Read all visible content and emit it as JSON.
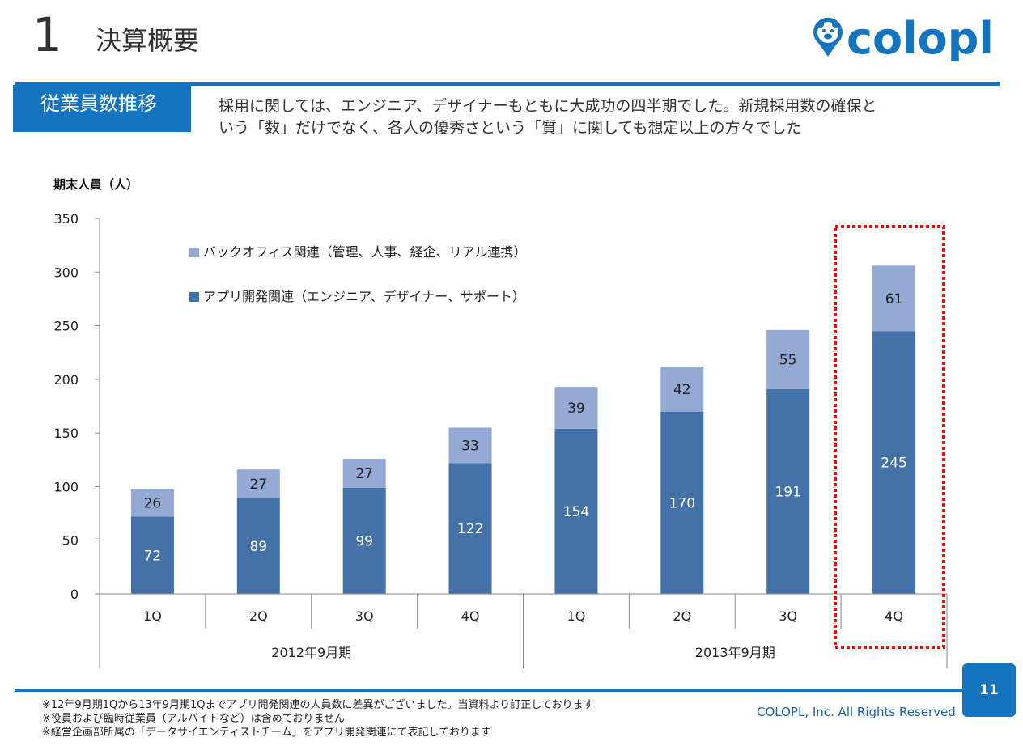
{
  "header": {
    "section_number": "1",
    "title": "決算概要",
    "tab_label": "従業員数推移",
    "description_lines": [
      "採用に関しては、エンジニア、デザイナーもともに大成功の四半期でした。新規採用数の確保と",
      "いう「数」だけでなく、各人の優秀さという「質」に関しても想定以上の方々でした"
    ]
  },
  "logo": {
    "text": "colopl",
    "icon": "bear-pin-icon",
    "color": "#1574bf"
  },
  "colors": {
    "brand": "#1574bf",
    "app": "#4472a8",
    "back_office": "#94a9d3",
    "highlight": "#e01010"
  },
  "chart_data": {
    "type": "bar",
    "stacked": true,
    "ylabel": "期末人員（人）",
    "ylim": [
      0,
      350
    ],
    "yticks": [
      "0",
      "50",
      "100",
      "150",
      "200",
      "250",
      "300",
      "350"
    ],
    "categories": [
      "1Q",
      "2Q",
      "3Q",
      "4Q",
      "1Q",
      "2Q",
      "3Q",
      "4Q"
    ],
    "groups": [
      {
        "label": "2012年9月期",
        "count": 4
      },
      {
        "label": "2013年9月期",
        "count": 4
      }
    ],
    "series": [
      {
        "name": "アプリ開発関連（エンジニア、デザイナー、サポート）",
        "color": "#4472a8",
        "values": [
          72,
          89,
          99,
          122,
          154,
          170,
          191,
          245
        ]
      },
      {
        "name": "バックオフィス関連（管理、人事、経企、リアル連携）",
        "color": "#94a9d3",
        "values": [
          26,
          27,
          27,
          33,
          39,
          42,
          55,
          61
        ]
      }
    ],
    "legend_position": "top-left",
    "highlighted_index": 7,
    "grid": false
  },
  "footer": {
    "notes": [
      "※12年9月期1Qから13年9月期1Qまでアプリ開発関連の人員数に差異がございました。当資料より訂正しております",
      "※役員および臨時従業員（アルバイトなど）は含めておりません",
      "※経営企画部所属の「データサイエンティストチーム」をアプリ開発関連にて表記しております"
    ],
    "copyright": "COLOPL, Inc. All Rights Reserved",
    "page_number": "11"
  }
}
